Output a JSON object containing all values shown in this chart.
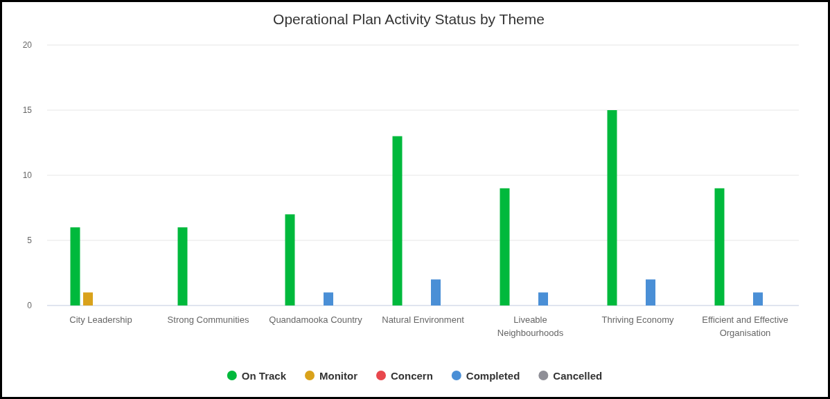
{
  "chart_data": {
    "type": "bar",
    "title": "Operational Plan Activity Status by Theme",
    "categories": [
      "City Leadership",
      "Strong Communities",
      "Quandamooka Country",
      "Natural Environment",
      "Liveable Neighbourhoods",
      "Thriving Economy",
      "Efficient and Effective Organisation"
    ],
    "series": [
      {
        "name": "On Track",
        "color": "#00b93c",
        "values": [
          6,
          6,
          7,
          13,
          9,
          15,
          9
        ]
      },
      {
        "name": "Monitor",
        "color": "#d9a21b",
        "values": [
          1,
          0,
          0,
          0,
          0,
          0,
          0
        ]
      },
      {
        "name": "Concern",
        "color": "#e8474d",
        "values": [
          0,
          0,
          0,
          0,
          0,
          0,
          0
        ]
      },
      {
        "name": "Completed",
        "color": "#4a8fd6",
        "values": [
          0,
          0,
          1,
          2,
          1,
          2,
          1
        ]
      },
      {
        "name": "Cancelled",
        "color": "#8e8e96",
        "values": [
          0,
          0,
          0,
          0,
          0,
          0,
          0
        ]
      }
    ],
    "ylim": [
      0,
      20
    ],
    "yticks": [
      0,
      5,
      10,
      15,
      20
    ],
    "grid": "y",
    "legend": "bottom"
  }
}
